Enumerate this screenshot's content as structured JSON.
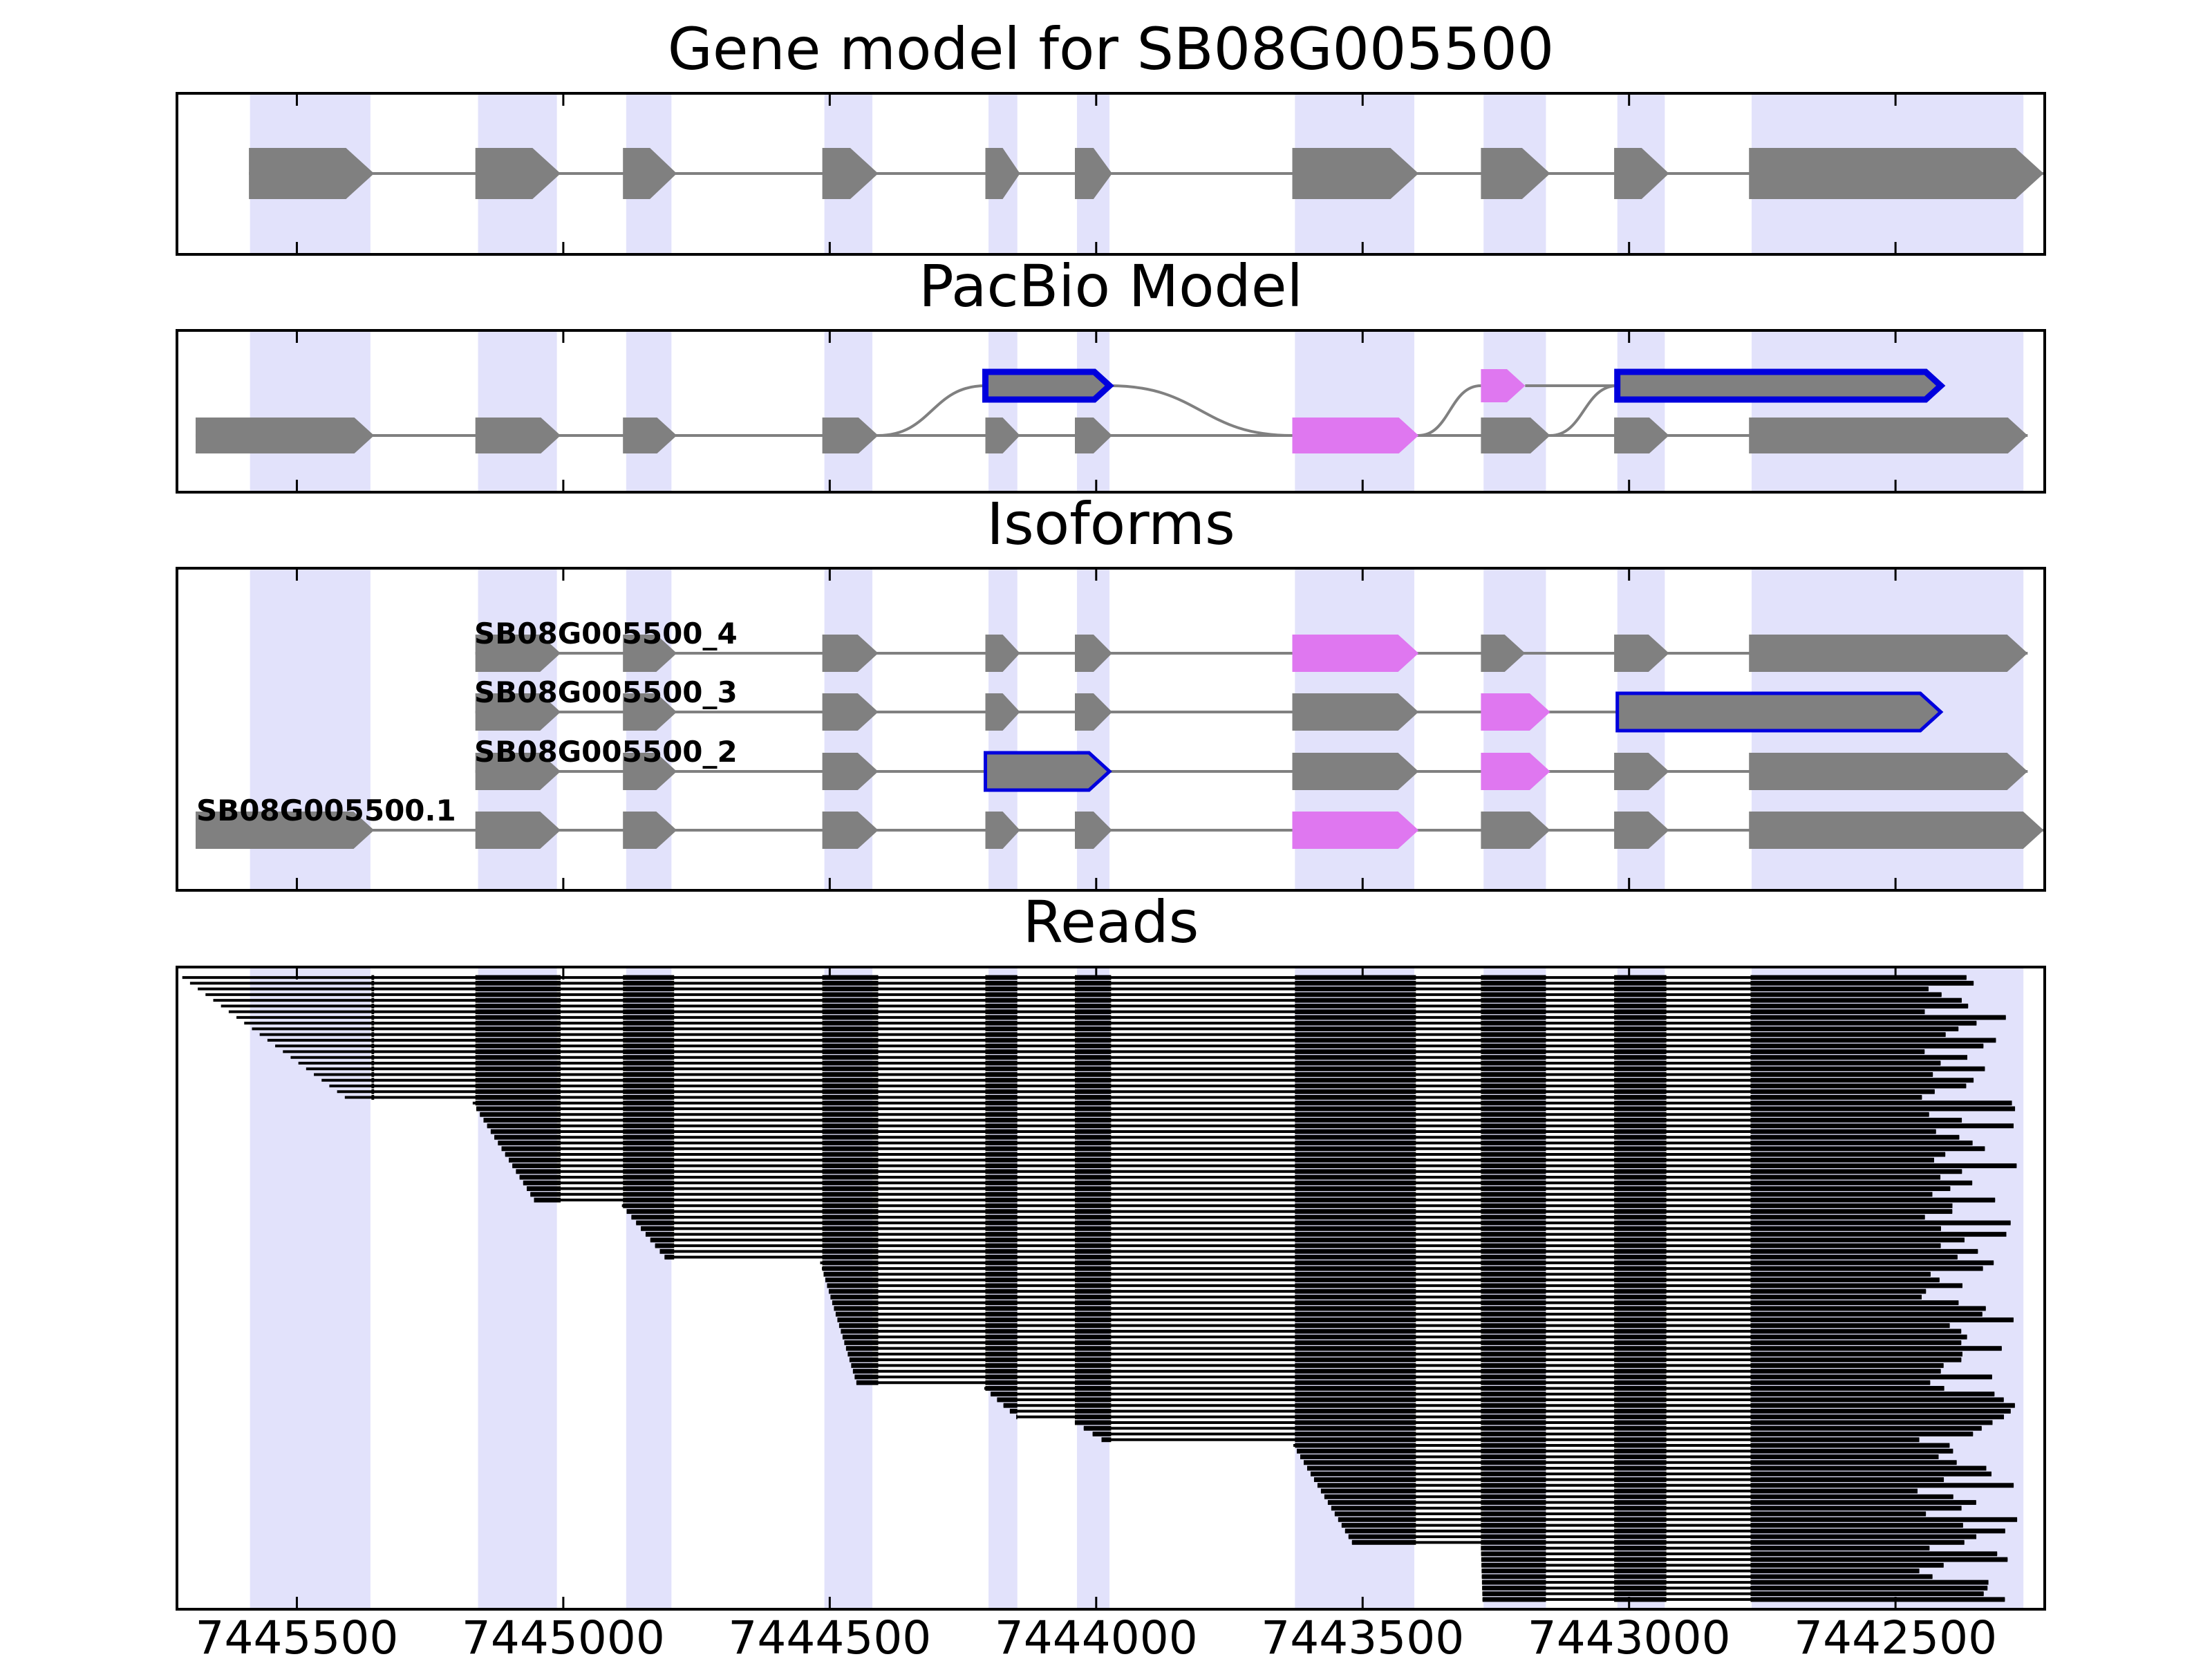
{
  "chart_data": {
    "type": "gene-model-track",
    "x_axis": {
      "direction": "descending",
      "xlim": [
        7445725,
        7442220
      ],
      "ticks": [
        7445500,
        7445000,
        7444500,
        7444000,
        7443500,
        7443000,
        7442500
      ],
      "tick_labels": [
        "7445500",
        "7445000",
        "7444500",
        "7444000",
        "7443500",
        "7443000",
        "7442500"
      ]
    },
    "exon_bands": [
      [
        7445588,
        7445362
      ],
      [
        7445160,
        7445012
      ],
      [
        7444882,
        7444797
      ],
      [
        7444510,
        7444420
      ],
      [
        7444202,
        7444148
      ],
      [
        7444036,
        7443975
      ],
      [
        7443627,
        7443403
      ],
      [
        7443273,
        7443156
      ],
      [
        7443022,
        7442933
      ],
      [
        7442770,
        7442260
      ]
    ],
    "panels": [
      {
        "title": "Gene model for SB08G005500",
        "tracks": [
          {
            "label": "",
            "style": "gray",
            "exons": [
              [
                7445590,
                7445355
              ],
              [
                7445165,
                7445005
              ],
              [
                7444888,
                7444787
              ],
              [
                7444514,
                7444409
              ],
              [
                7444208,
                7444143
              ],
              [
                7444040,
                7443970
              ],
              [
                7443632,
                7443395
              ],
              [
                7443278,
                7443148
              ],
              [
                7443028,
                7442925
              ],
              [
                7442775,
                7442222
              ]
            ]
          }
        ]
      },
      {
        "title": "PacBio Model",
        "tracks": [
          {
            "label": "",
            "style": "gray",
            "row": 1,
            "exons": [
              [
                7445690,
                7445355
              ],
              [
                7445165,
                7445005
              ],
              [
                7444888,
                7444787
              ],
              [
                7444514,
                7444409
              ],
              [
                7444208,
                7444143
              ],
              [
                7444040,
                7443970
              ],
              [
                7443632,
                7443395
              ],
              [
                7443278,
                7443148
              ],
              [
                7443028,
                7442925
              ],
              [
                7442775,
                7442252
              ]
            ],
            "pink": [
              6
            ]
          },
          {
            "label": "",
            "style": "alt-split",
            "row": 0,
            "first_exon_outline": [
              7444208,
              7443975
            ],
            "pink_exon": [
              7443278,
              7443195
            ],
            "last_exon_outline": [
              7443022,
              7442415
            ]
          }
        ]
      },
      {
        "title": "Isoforms",
        "tracks": [
          {
            "label": "SB08G005500_4",
            "exons": [
              [
                7445165,
                7445005
              ],
              [
                7444888,
                7444787
              ],
              [
                7444514,
                7444409
              ],
              [
                7444208,
                7444143
              ],
              [
                7444040,
                7443970
              ],
              [
                7443632,
                7443395
              ],
              [
                7443278,
                7443195
              ],
              [
                7443028,
                7442925
              ],
              [
                7442775,
                7442252
              ]
            ],
            "pink": [
              5
            ],
            "outline": []
          },
          {
            "label": "SB08G005500_3",
            "exons": [
              [
                7445165,
                7445005
              ],
              [
                7444888,
                7444787
              ],
              [
                7444514,
                7444409
              ],
              [
                7444208,
                7444143
              ],
              [
                7444040,
                7443970
              ],
              [
                7443632,
                7443395
              ],
              [
                7443278,
                7443148
              ],
              [
                7443022,
                7442415
              ]
            ],
            "pink": [
              6
            ],
            "outline": [
              7
            ]
          },
          {
            "label": "SB08G005500_2",
            "exons": [
              [
                7445165,
                7445005
              ],
              [
                7444888,
                7444787
              ],
              [
                7444514,
                7444409
              ],
              [
                7444208,
                7443975
              ],
              [
                7443632,
                7443395
              ],
              [
                7443278,
                7443148
              ],
              [
                7443028,
                7442925
              ],
              [
                7442775,
                7442252
              ]
            ],
            "pink": [
              5
            ],
            "outline": [
              3
            ]
          },
          {
            "label": "SB08G005500.1",
            "exons": [
              [
                7445690,
                7445355
              ],
              [
                7445165,
                7445005
              ],
              [
                7444888,
                7444787
              ],
              [
                7444514,
                7444409
              ],
              [
                7444208,
                7444143
              ],
              [
                7444040,
                7443970
              ],
              [
                7443632,
                7443395
              ],
              [
                7443278,
                7443148
              ],
              [
                7443028,
                7442925
              ],
              [
                7442775,
                7442222
              ]
            ],
            "pink": [
              6
            ],
            "outline": []
          }
        ]
      },
      {
        "title": "Reads",
        "read_count": 110,
        "read_exons": [
          [
            7445360,
            7445355
          ],
          [
            7445165,
            7445005
          ],
          [
            7444888,
            7444792
          ],
          [
            7444514,
            7444409
          ],
          [
            7444208,
            7444148
          ],
          [
            7444040,
            7443972
          ],
          [
            7443627,
            7443400
          ],
          [
            7443278,
            7443156
          ],
          [
            7443028,
            7442930
          ],
          [
            7442772,
            7442255
          ]
        ],
        "start_groups": [
          {
            "count": 22,
            "from": 7445715,
            "to": 7445410
          },
          {
            "count": 18,
            "from": 7445170,
            "to": 7445055
          },
          {
            "count": 10,
            "from": 7444890,
            "to": 7444810
          },
          {
            "count": 22,
            "from": 7444518,
            "to": 7444450
          },
          {
            "count": 6,
            "from": 7444210,
            "to": 7444150
          },
          {
            "count": 4,
            "from": 7444040,
            "to": 7443990
          },
          {
            "count": 18,
            "from": 7443630,
            "to": 7443520
          },
          {
            "count": 10,
            "from": 7443278,
            "to": 7443275
          }
        ],
        "end_range": [
          7442460,
          7442270
        ]
      }
    ]
  }
}
